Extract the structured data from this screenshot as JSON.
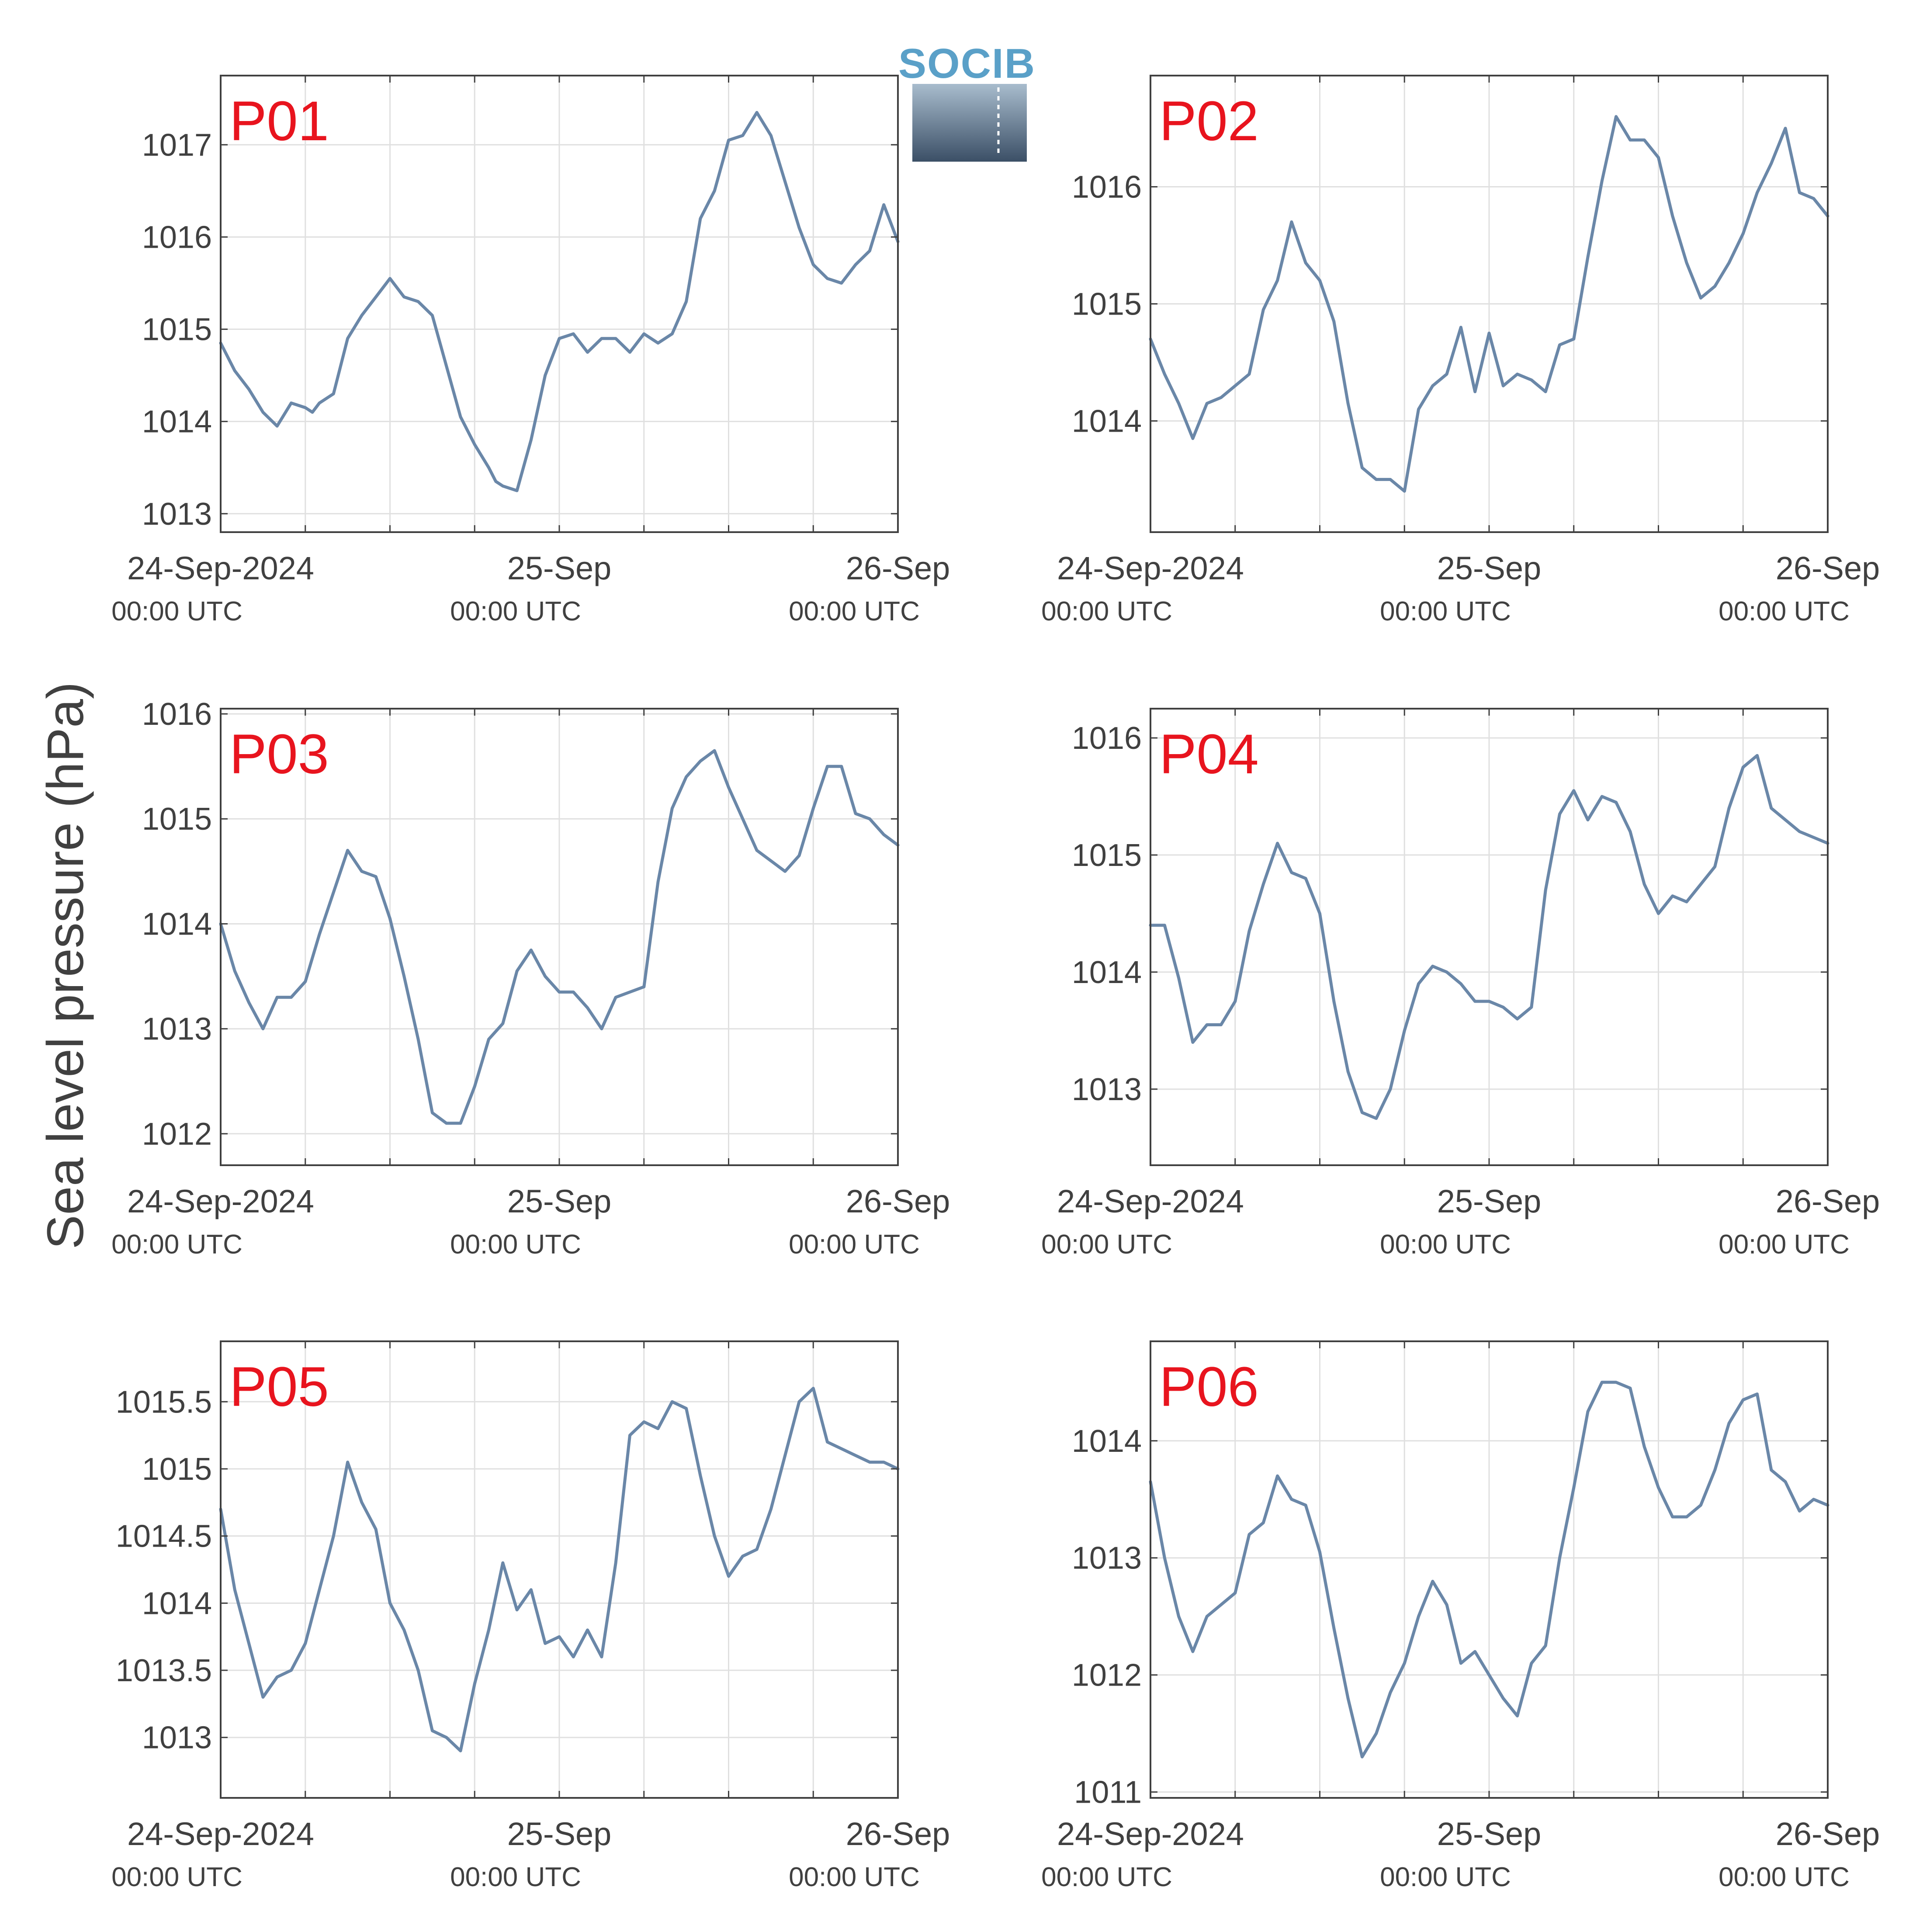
{
  "figure": {
    "ylabel": "Sea level pressure (hPa)",
    "logo_text": "SOCIB"
  },
  "style": {
    "line_color": "#6a87a8",
    "label_color": "#e8141e",
    "grid_color": "#e0e0e0",
    "axis_color": "#404040"
  },
  "chart_data": [
    {
      "type": "line",
      "panel": "P01",
      "x_start": "2024-09-24T00:00Z",
      "x_end": "2024-09-26T00:00Z",
      "x_tick_labels": [
        {
          "date": "24-Sep-2024",
          "time": "00:00 UTC"
        },
        {
          "date": "25-Sep",
          "time": "00:00 UTC"
        },
        {
          "date": "26-Sep",
          "time": "00:00 UTC"
        }
      ],
      "yticks": [
        1013,
        1014,
        1015,
        1016,
        1017
      ],
      "ytick_labels": [
        "1013",
        "1014",
        "1015",
        "1016",
        "1017"
      ],
      "ylim": [
        1012.8,
        1017.75
      ],
      "grid": true,
      "series": [
        {
          "x": [
            0,
            1,
            2,
            3,
            4,
            5,
            6,
            6.5,
            7,
            8,
            9,
            10,
            11,
            12,
            13,
            14,
            15,
            16,
            17,
            18,
            19,
            19.5,
            20,
            21,
            22,
            23,
            24,
            25,
            26,
            27,
            28,
            29,
            30,
            31,
            32,
            33,
            34,
            35,
            36,
            37,
            38,
            39,
            40,
            41,
            42,
            43,
            44,
            45,
            46,
            47,
            48
          ],
          "values": [
            1014.85,
            1014.55,
            1014.35,
            1014.1,
            1013.95,
            1014.2,
            1014.15,
            1014.1,
            1014.2,
            1014.3,
            1014.9,
            1015.15,
            1015.35,
            1015.55,
            1015.35,
            1015.3,
            1015.15,
            1014.6,
            1014.05,
            1013.75,
            1013.5,
            1013.35,
            1013.3,
            1013.25,
            1013.8,
            1014.5,
            1014.9,
            1014.95,
            1014.75,
            1014.9,
            1014.9,
            1014.75,
            1014.95,
            1014.85,
            1014.95,
            1015.3,
            1016.2,
            1016.5,
            1017.05,
            1017.1,
            1017.35,
            1017.1,
            1016.6,
            1016.1,
            1015.7,
            1015.55,
            1015.5,
            1015.7,
            1015.85,
            1016.35,
            1015.95
          ]
        }
      ]
    },
    {
      "type": "line",
      "panel": "P02",
      "x_start": "2024-09-24T00:00Z",
      "x_end": "2024-09-26T00:00Z",
      "x_tick_labels": [
        {
          "date": "24-Sep-2024",
          "time": "00:00 UTC"
        },
        {
          "date": "25-Sep",
          "time": "00:00 UTC"
        },
        {
          "date": "26-Sep",
          "time": "00:00 UTC"
        }
      ],
      "yticks": [
        1014,
        1015,
        1016
      ],
      "ytick_labels": [
        "1014",
        "1015",
        "1016"
      ],
      "ylim": [
        1013.05,
        1016.95
      ],
      "grid": true,
      "series": [
        {
          "x": [
            0,
            1,
            2,
            3,
            4,
            5,
            6,
            7,
            8,
            9,
            10,
            11,
            12,
            13,
            14,
            15,
            16,
            17,
            18,
            19,
            20,
            21,
            22,
            23,
            24,
            25,
            26,
            27,
            28,
            29,
            30,
            31,
            32,
            33,
            34,
            35,
            36,
            37,
            38,
            39,
            40,
            41,
            42,
            43,
            44,
            45,
            46,
            47,
            48
          ],
          "values": [
            1014.7,
            1014.4,
            1014.15,
            1013.85,
            1014.15,
            1014.2,
            1014.3,
            1014.4,
            1014.95,
            1015.2,
            1015.7,
            1015.35,
            1015.2,
            1014.85,
            1014.15,
            1013.6,
            1013.5,
            1013.5,
            1013.4,
            1014.1,
            1014.3,
            1014.4,
            1014.8,
            1014.25,
            1014.75,
            1014.3,
            1014.4,
            1014.35,
            1014.25,
            1014.65,
            1014.7,
            1015.4,
            1016.05,
            1016.6,
            1016.4,
            1016.4,
            1016.25,
            1015.75,
            1015.35,
            1015.05,
            1015.15,
            1015.35,
            1015.6,
            1015.95,
            1016.2,
            1016.5,
            1015.95,
            1015.9,
            1015.75
          ]
        }
      ]
    },
    {
      "type": "line",
      "panel": "P03",
      "x_start": "2024-09-24T00:00Z",
      "x_end": "2024-09-26T00:00Z",
      "x_tick_labels": [
        {
          "date": "24-Sep-2024",
          "time": "00:00 UTC"
        },
        {
          "date": "25-Sep",
          "time": "00:00 UTC"
        },
        {
          "date": "26-Sep",
          "time": "00:00 UTC"
        }
      ],
      "yticks": [
        1012,
        1013,
        1014,
        1015,
        1016
      ],
      "ytick_labels": [
        "1012",
        "1013",
        "1014",
        "1015",
        "1016"
      ],
      "ylim": [
        1011.7,
        1016.05
      ],
      "grid": true,
      "series": [
        {
          "x": [
            0,
            1,
            2,
            3,
            4,
            5,
            6,
            7,
            8,
            9,
            10,
            11,
            12,
            13,
            14,
            15,
            16,
            17,
            18,
            19,
            20,
            21,
            22,
            23,
            24,
            25,
            26,
            27,
            28,
            29,
            30,
            31,
            32,
            33,
            34,
            35,
            36,
            37,
            38,
            39,
            40,
            41,
            42,
            43,
            44,
            45,
            46,
            47,
            48
          ],
          "values": [
            1014.0,
            1013.55,
            1013.25,
            1013.0,
            1013.3,
            1013.3,
            1013.45,
            1013.9,
            1014.3,
            1014.7,
            1014.5,
            1014.45,
            1014.05,
            1013.5,
            1012.9,
            1012.2,
            1012.1,
            1012.1,
            1012.45,
            1012.9,
            1013.05,
            1013.55,
            1013.75,
            1013.5,
            1013.35,
            1013.35,
            1013.2,
            1013.0,
            1013.3,
            1013.35,
            1013.4,
            1014.4,
            1015.1,
            1015.4,
            1015.55,
            1015.65,
            1015.3,
            1015.0,
            1014.7,
            1014.6,
            1014.5,
            1014.65,
            1015.1,
            1015.5,
            1015.5,
            1015.05,
            1015.0,
            1014.85,
            1014.75
          ]
        }
      ]
    },
    {
      "type": "line",
      "panel": "P04",
      "x_start": "2024-09-24T00:00Z",
      "x_end": "2024-09-26T00:00Z",
      "x_tick_labels": [
        {
          "date": "24-Sep-2024",
          "time": "00:00 UTC"
        },
        {
          "date": "25-Sep",
          "time": "00:00 UTC"
        },
        {
          "date": "26-Sep",
          "time": "00:00 UTC"
        }
      ],
      "yticks": [
        1013,
        1014,
        1015,
        1016
      ],
      "ytick_labels": [
        "1013",
        "1014",
        "1015",
        "1016"
      ],
      "ylim": [
        1012.35,
        1016.25
      ],
      "grid": true,
      "series": [
        {
          "x": [
            0,
            1,
            2,
            3,
            4,
            5,
            6,
            7,
            8,
            9,
            10,
            11,
            12,
            13,
            14,
            15,
            16,
            17,
            18,
            19,
            20,
            21,
            22,
            23,
            24,
            25,
            26,
            27,
            28,
            29,
            30,
            31,
            32,
            33,
            34,
            35,
            36,
            37,
            38,
            39,
            40,
            41,
            42,
            43,
            44,
            45,
            46,
            47,
            48
          ],
          "values": [
            1014.4,
            1014.4,
            1013.95,
            1013.4,
            1013.55,
            1013.55,
            1013.75,
            1014.35,
            1014.75,
            1015.1,
            1014.85,
            1014.8,
            1014.5,
            1013.75,
            1013.15,
            1012.8,
            1012.75,
            1013.0,
            1013.5,
            1013.9,
            1014.05,
            1014.0,
            1013.9,
            1013.75,
            1013.75,
            1013.7,
            1013.6,
            1013.7,
            1014.7,
            1015.35,
            1015.55,
            1015.3,
            1015.5,
            1015.45,
            1015.2,
            1014.75,
            1014.5,
            1014.65,
            1014.6,
            1014.75,
            1014.9,
            1015.4,
            1015.75,
            1015.85,
            1015.4,
            1015.3,
            1015.2,
            1015.15,
            1015.1
          ]
        }
      ]
    },
    {
      "type": "line",
      "panel": "P05",
      "x_start": "2024-09-24T00:00Z",
      "x_end": "2024-09-26T00:00Z",
      "x_tick_labels": [
        {
          "date": "24-Sep-2024",
          "time": "00:00 UTC"
        },
        {
          "date": "25-Sep",
          "time": "00:00 UTC"
        },
        {
          "date": "26-Sep",
          "time": "00:00 UTC"
        }
      ],
      "yticks": [
        1013,
        1013.5,
        1014,
        1014.5,
        1015,
        1015.5
      ],
      "ytick_labels": [
        "1013",
        "1013.5",
        "1014",
        "1014.5",
        "1015",
        "1015.5"
      ],
      "ylim": [
        1012.55,
        1015.95
      ],
      "grid": true,
      "series": [
        {
          "x": [
            0,
            1,
            2,
            3,
            4,
            5,
            6,
            7,
            8,
            9,
            10,
            11,
            12,
            13,
            14,
            15,
            16,
            17,
            18,
            19,
            20,
            21,
            22,
            23,
            24,
            25,
            26,
            27,
            28,
            29,
            30,
            31,
            32,
            33,
            34,
            35,
            36,
            37,
            38,
            39,
            40,
            41,
            42,
            43,
            44,
            45,
            46,
            47,
            48
          ],
          "values": [
            1014.7,
            1014.1,
            1013.7,
            1013.3,
            1013.45,
            1013.5,
            1013.7,
            1014.1,
            1014.5,
            1015.05,
            1014.75,
            1014.55,
            1014.0,
            1013.8,
            1013.5,
            1013.05,
            1013.0,
            1012.9,
            1013.4,
            1013.8,
            1014.3,
            1013.95,
            1014.1,
            1013.7,
            1013.75,
            1013.6,
            1013.8,
            1013.6,
            1014.3,
            1015.25,
            1015.35,
            1015.3,
            1015.5,
            1015.45,
            1014.95,
            1014.5,
            1014.2,
            1014.35,
            1014.4,
            1014.7,
            1015.1,
            1015.5,
            1015.6,
            1015.2,
            1015.15,
            1015.1,
            1015.05,
            1015.05,
            1015.0
          ]
        }
      ]
    },
    {
      "type": "line",
      "panel": "P06",
      "x_start": "2024-09-24T00:00Z",
      "x_end": "2024-09-26T00:00Z",
      "x_tick_labels": [
        {
          "date": "24-Sep-2024",
          "time": "00:00 UTC"
        },
        {
          "date": "25-Sep",
          "time": "00:00 UTC"
        },
        {
          "date": "26-Sep",
          "time": "00:00 UTC"
        }
      ],
      "yticks": [
        1011,
        1012,
        1013,
        1014
      ],
      "ytick_labels": [
        "1011",
        "1012",
        "1013",
        "1014"
      ],
      "ylim": [
        1010.95,
        1014.85
      ],
      "grid": true,
      "series": [
        {
          "x": [
            0,
            1,
            2,
            3,
            4,
            5,
            6,
            7,
            8,
            9,
            10,
            11,
            12,
            13,
            14,
            15,
            16,
            17,
            18,
            19,
            20,
            21,
            22,
            23,
            24,
            25,
            26,
            27,
            28,
            29,
            30,
            31,
            32,
            33,
            34,
            35,
            36,
            37,
            38,
            39,
            40,
            41,
            42,
            43,
            44,
            45,
            46,
            47,
            48
          ],
          "values": [
            1013.65,
            1013.0,
            1012.5,
            1012.2,
            1012.5,
            1012.6,
            1012.7,
            1013.2,
            1013.3,
            1013.7,
            1013.5,
            1013.45,
            1013.05,
            1012.4,
            1011.8,
            1011.3,
            1011.5,
            1011.85,
            1012.1,
            1012.5,
            1012.8,
            1012.6,
            1012.1,
            1012.2,
            1012.0,
            1011.8,
            1011.65,
            1012.1,
            1012.25,
            1013.0,
            1013.6,
            1014.25,
            1014.5,
            1014.5,
            1014.45,
            1013.95,
            1013.6,
            1013.35,
            1013.35,
            1013.45,
            1013.75,
            1014.15,
            1014.35,
            1014.4,
            1013.75,
            1013.65,
            1013.4,
            1013.5,
            1013.45
          ]
        }
      ]
    }
  ]
}
